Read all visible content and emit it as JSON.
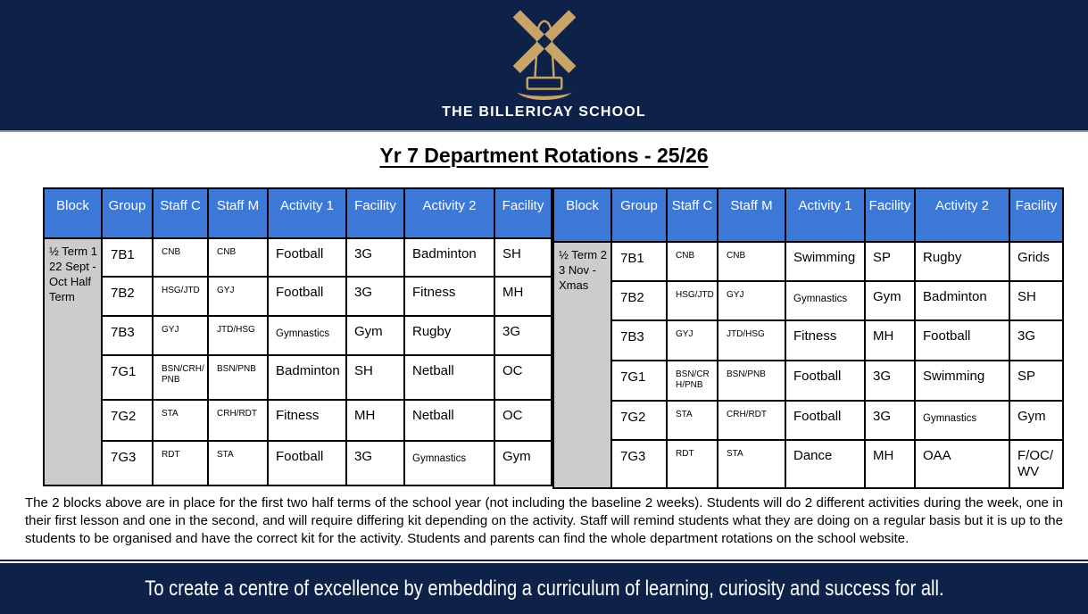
{
  "header": {
    "school_name": "THE BILLERICAY SCHOOL",
    "logo": "windmill-icon"
  },
  "title": "Yr 7 Department Rotations - 25/26",
  "tables": [
    {
      "name": "block-1",
      "block_label": "½ Term 1 22 Sept - Oct Half Term",
      "columns": [
        "Block",
        "Group",
        "Staff C",
        "Staff M",
        "Activity 1",
        "Facility",
        "Activity 2",
        "Facility"
      ],
      "rows": [
        {
          "group": "7B1",
          "staff_c": "CNB",
          "staff_m": "CNB",
          "activity1": "Football",
          "facility1": "3G",
          "activity2": "Badminton",
          "facility2": "SH"
        },
        {
          "group": "7B2",
          "staff_c": "HSG/JTD",
          "staff_m": "GYJ",
          "activity1": "Football",
          "facility1": "3G",
          "activity2": "Fitness",
          "facility2": "MH"
        },
        {
          "group": "7B3",
          "staff_c": "GYJ",
          "staff_m": "JTD/HSG",
          "activity1": "Gymnastics",
          "facility1": "Gym",
          "activity2": "Rugby",
          "facility2": "3G"
        },
        {
          "group": "7G1",
          "staff_c": "BSN/CRH/PNB",
          "staff_m": "BSN/PNB",
          "activity1": "Badminton",
          "facility1": "SH",
          "activity2": "Netball",
          "facility2": "OC"
        },
        {
          "group": "7G2",
          "staff_c": "STA",
          "staff_m": "CRH/RDT",
          "activity1": "Fitness",
          "facility1": "MH",
          "activity2": "Netball",
          "facility2": "OC"
        },
        {
          "group": "7G3",
          "staff_c": "RDT",
          "staff_m": "STA",
          "activity1": "Football",
          "facility1": "3G",
          "activity2": "Gymnastics",
          "facility2": "Gym"
        }
      ]
    },
    {
      "name": "block-2",
      "block_label": "½ Term 2 3 Nov - Xmas",
      "columns": [
        "Block",
        "Group",
        "Staff C",
        "Staff M",
        "Activity 1",
        "Facility",
        "Activity 2",
        "Facility"
      ],
      "rows": [
        {
          "group": "7B1",
          "staff_c": "CNB",
          "staff_m": "CNB",
          "activity1": "Swimming",
          "facility1": "SP",
          "activity2": "Rugby",
          "facility2": "Grids"
        },
        {
          "group": "7B2",
          "staff_c": "HSG/JTD",
          "staff_m": "GYJ",
          "activity1": "Gymnastics",
          "facility1": "Gym",
          "activity2": "Badminton",
          "facility2": "SH"
        },
        {
          "group": "7B3",
          "staff_c": "GYJ",
          "staff_m": "JTD/HSG",
          "activity1": "Fitness",
          "facility1": "MH",
          "activity2": "Football",
          "facility2": "3G"
        },
        {
          "group": "7G1",
          "staff_c": "BSN/CRH/PNB",
          "staff_m": "BSN/PNB",
          "activity1": "Football",
          "facility1": "3G",
          "activity2": "Swimming",
          "facility2": "SP"
        },
        {
          "group": "7G2",
          "staff_c": "STA",
          "staff_m": "CRH/RDT",
          "activity1": "Football",
          "facility1": "3G",
          "activity2": "Gymnastics",
          "facility2": "Gym"
        },
        {
          "group": "7G3",
          "staff_c": "RDT",
          "staff_m": "STA",
          "activity1": "Dance",
          "facility1": "MH",
          "activity2": "OAA",
          "facility2": "F/OC/WV"
        }
      ]
    }
  ],
  "note": "The 2 blocks above are in place for the first two half terms of the school year (not including the baseline 2 weeks). Students will do 2 different activities during the week, one in their first lesson and one in the second,  and will require differing kit depending on the activity. Staff will remind students what they are doing on a regular basis but it is up to the students to be organised and have the correct kit for the activity. Students and parents can find the whole department rotations on the school website.",
  "footer": {
    "motto": "To create a centre of excellence by embedding a curriculum of learning, curiosity and success for all."
  },
  "colors": {
    "navy": "#0D2149",
    "table_header_blue": "#3C78D8",
    "block_gray": "#CCCCCC",
    "logo_tan": "#C9A469"
  }
}
